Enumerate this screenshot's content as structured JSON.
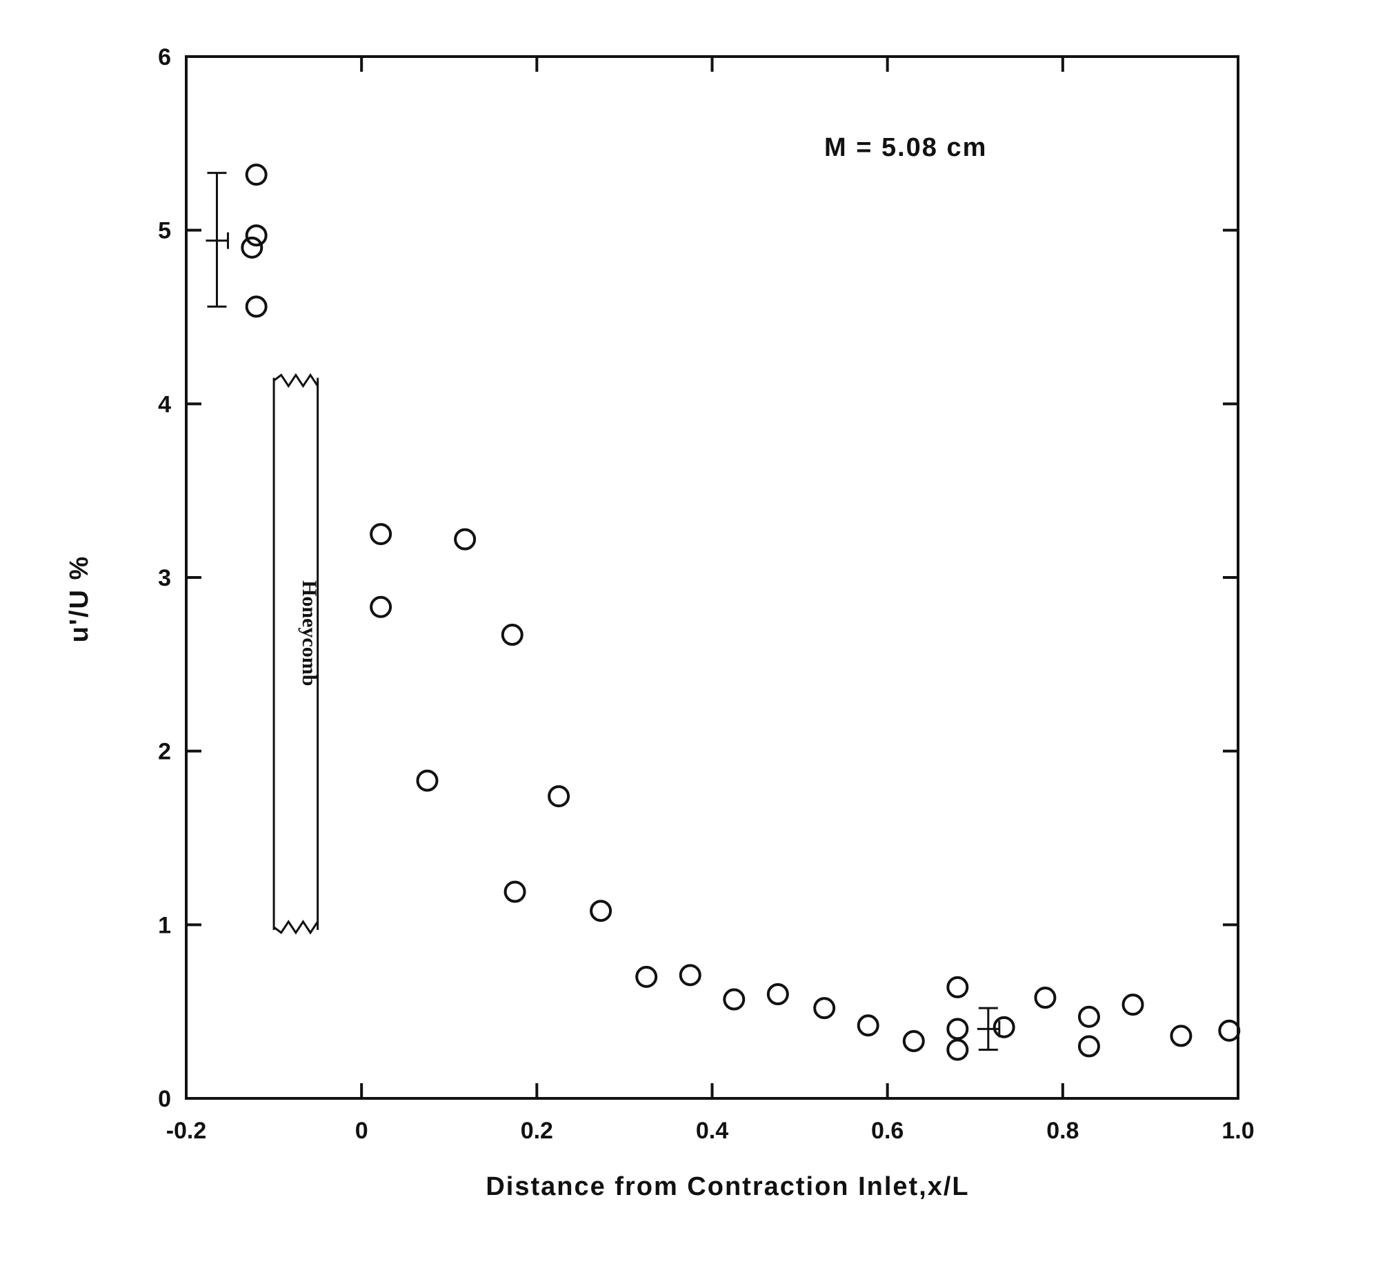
{
  "chart_data": {
    "type": "scatter",
    "title": "",
    "xlabel": "Distance from Contraction Inlet,x/L",
    "ylabel": "u'/U %",
    "xlim": [
      -0.2,
      1.0
    ],
    "ylim": [
      0,
      6
    ],
    "x_ticks": [
      -0.2,
      0,
      0.2,
      0.4,
      0.6,
      0.8,
      1.0
    ],
    "x_tick_labels": [
      "-0.2",
      "0",
      "0.2",
      "0.4",
      "0.6",
      "0.8",
      "1.0"
    ],
    "y_ticks": [
      0,
      1,
      2,
      3,
      4,
      5,
      6
    ],
    "y_tick_labels": [
      "0",
      "1",
      "2",
      "3",
      "4",
      "5",
      "6"
    ],
    "grid": false,
    "legend": "none",
    "marker": "open-circle",
    "annotation": "M = 5.08 cm",
    "honeycomb": {
      "label": "Honeycomb",
      "x_range": [
        -0.1,
        -0.05
      ],
      "y_range": [
        0.97,
        4.15
      ]
    },
    "error_bars": [
      {
        "x": -0.165,
        "y": 4.94,
        "y_low": 4.56,
        "y_high": 5.33
      },
      {
        "x": 0.715,
        "y": 0.4,
        "y_low": 0.28,
        "y_high": 0.52
      }
    ],
    "points": [
      {
        "x": -0.12,
        "y": 5.32
      },
      {
        "x": -0.12,
        "y": 4.97
      },
      {
        "x": -0.125,
        "y": 4.9
      },
      {
        "x": -0.12,
        "y": 4.56
      },
      {
        "x": 0.022,
        "y": 3.25
      },
      {
        "x": 0.118,
        "y": 3.22
      },
      {
        "x": 0.022,
        "y": 2.83
      },
      {
        "x": 0.172,
        "y": 2.67
      },
      {
        "x": 0.075,
        "y": 1.83
      },
      {
        "x": 0.225,
        "y": 1.74
      },
      {
        "x": 0.175,
        "y": 1.19
      },
      {
        "x": 0.273,
        "y": 1.08
      },
      {
        "x": 0.325,
        "y": 0.7
      },
      {
        "x": 0.375,
        "y": 0.71
      },
      {
        "x": 0.425,
        "y": 0.57
      },
      {
        "x": 0.475,
        "y": 0.6
      },
      {
        "x": 0.528,
        "y": 0.52
      },
      {
        "x": 0.578,
        "y": 0.42
      },
      {
        "x": 0.63,
        "y": 0.33
      },
      {
        "x": 0.68,
        "y": 0.64
      },
      {
        "x": 0.68,
        "y": 0.4
      },
      {
        "x": 0.68,
        "y": 0.28
      },
      {
        "x": 0.733,
        "y": 0.41
      },
      {
        "x": 0.78,
        "y": 0.58
      },
      {
        "x": 0.83,
        "y": 0.47
      },
      {
        "x": 0.83,
        "y": 0.3
      },
      {
        "x": 0.88,
        "y": 0.54
      },
      {
        "x": 0.935,
        "y": 0.36
      },
      {
        "x": 0.99,
        "y": 0.39
      }
    ]
  }
}
